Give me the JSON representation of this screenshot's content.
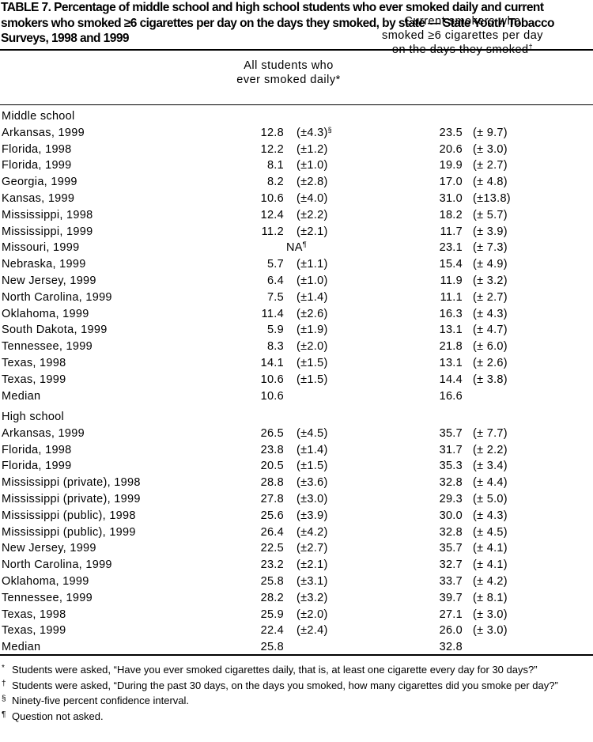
{
  "header": {
    "title": "TABLE 7. Percentage of middle school and high school students who ever smoked daily and current smokers who smoked ≥6 cigarettes per day on the days they smoked, by state — State Youth Tobacco Surveys, 1998 and 1999"
  },
  "table": {
    "columns": [
      {
        "lines": [
          "All students who",
          "ever smoked daily*"
        ]
      },
      {
        "lines": [
          "Current smokers who",
          "smoked ≥6 cigarettes per day",
          "on the days they smoked"
        ],
        "mark": "†"
      }
    ],
    "sections": [
      {
        "title": "Middle school",
        "rows": [
          {
            "label": "Arkansas, 1999",
            "v1": "12.8",
            "ci1": "(±4.3)",
            "note1": "§",
            "v2": "23.5",
            "ci2": "(± 9.7)"
          },
          {
            "label": "Florida, 1998",
            "v1": "12.2",
            "ci1": "(±1.2)",
            "v2": "20.6",
            "ci2": "(± 3.0)"
          },
          {
            "label": "Florida, 1999",
            "v1": "8.1",
            "ci1": "(±1.0)",
            "v2": "19.9",
            "ci2": "(± 2.7)"
          },
          {
            "label": "Georgia, 1999",
            "v1": "8.2",
            "ci1": "(±2.8)",
            "v2": "17.0",
            "ci2": "(± 4.8)"
          },
          {
            "label": "Kansas, 1999",
            "v1": "10.6",
            "ci1": "(±4.0)",
            "v2": "31.0",
            "ci2": "(±13.8)"
          },
          {
            "label": "Mississippi, 1998",
            "v1": "12.4",
            "ci1": "(±2.2)",
            "v2": "18.2",
            "ci2": "(± 5.7)"
          },
          {
            "label": "Mississippi, 1999",
            "v1": "11.2",
            "ci1": "(±2.1)",
            "v2": "11.7",
            "ci2": "(± 3.9)"
          },
          {
            "label": "Missouri, 1999",
            "na": "NA",
            "note1": "¶",
            "v2": "23.1",
            "ci2": "(± 7.3)"
          },
          {
            "label": "Nebraska, 1999",
            "v1": "5.7",
            "ci1": "(±1.1)",
            "v2": "15.4",
            "ci2": "(± 4.9)"
          },
          {
            "label": "New Jersey, 1999",
            "v1": "6.4",
            "ci1": "(±1.0)",
            "v2": "11.9",
            "ci2": "(± 3.2)"
          },
          {
            "label": "North Carolina, 1999",
            "v1": "7.5",
            "ci1": "(±1.4)",
            "v2": "11.1",
            "ci2": "(± 2.7)"
          },
          {
            "label": "Oklahoma, 1999",
            "v1": "11.4",
            "ci1": "(±2.6)",
            "v2": "16.3",
            "ci2": "(± 4.3)"
          },
          {
            "label": "South Dakota, 1999",
            "v1": "5.9",
            "ci1": "(±1.9)",
            "v2": "13.1",
            "ci2": "(± 4.7)"
          },
          {
            "label": "Tennessee, 1999",
            "v1": "8.3",
            "ci1": "(±2.0)",
            "v2": "21.8",
            "ci2": "(± 6.0)"
          },
          {
            "label": "Texas, 1998",
            "v1": "14.1",
            "ci1": "(±1.5)",
            "v2": "13.1",
            "ci2": "(± 2.6)"
          },
          {
            "label": "Texas, 1999",
            "v1": "10.6",
            "ci1": "(±1.5)",
            "v2": "14.4",
            "ci2": "(± 3.8)"
          },
          {
            "label": "Median",
            "v1": "10.6",
            "v2": "16.6"
          }
        ]
      },
      {
        "title": "High school",
        "rows": [
          {
            "label": "Arkansas, 1999",
            "v1": "26.5",
            "ci1": "(±4.5)",
            "v2": "35.7",
            "ci2": "(± 7.7)"
          },
          {
            "label": "Florida, 1998",
            "v1": "23.8",
            "ci1": "(±1.4)",
            "v2": "31.7",
            "ci2": "(± 2.2)"
          },
          {
            "label": "Florida, 1999",
            "v1": "20.5",
            "ci1": "(±1.5)",
            "v2": "35.3",
            "ci2": "(± 3.4)"
          },
          {
            "label": "Mississippi (private), 1998",
            "v1": "28.8",
            "ci1": "(±3.6)",
            "v2": "32.8",
            "ci2": "(± 4.4)"
          },
          {
            "label": "Mississippi (private), 1999",
            "v1": "27.8",
            "ci1": "(±3.0)",
            "v2": "29.3",
            "ci2": "(± 5.0)"
          },
          {
            "label": "Mississippi (public), 1998",
            "v1": "25.6",
            "ci1": "(±3.9)",
            "v2": "30.0",
            "ci2": "(± 4.3)"
          },
          {
            "label": "Mississippi (public), 1999",
            "v1": "26.4",
            "ci1": "(±4.2)",
            "v2": "32.8",
            "ci2": "(± 4.5)"
          },
          {
            "label": "New Jersey, 1999",
            "v1": "22.5",
            "ci1": "(±2.7)",
            "v2": "35.7",
            "ci2": "(± 4.1)"
          },
          {
            "label": "North Carolina, 1999",
            "v1": "23.2",
            "ci1": "(±2.1)",
            "v2": "32.7",
            "ci2": "(± 4.1)"
          },
          {
            "label": "Oklahoma, 1999",
            "v1": "25.8",
            "ci1": "(±3.1)",
            "v2": "33.7",
            "ci2": "(± 4.2)"
          },
          {
            "label": "Tennessee, 1999",
            "v1": "28.2",
            "ci1": "(±3.2)",
            "v2": "39.7",
            "ci2": "(± 8.1)"
          },
          {
            "label": "Texas, 1998",
            "v1": "25.9",
            "ci1": "(±2.0)",
            "v2": "27.1",
            "ci2": "(± 3.0)"
          },
          {
            "label": "Texas, 1999",
            "v1": "22.4",
            "ci1": "(±2.4)",
            "v2": "26.0",
            "ci2": "(± 3.0)"
          },
          {
            "label": "Median",
            "v1": "25.8",
            "v2": "32.8"
          }
        ]
      }
    ]
  },
  "footnotes": [
    {
      "mark": "*",
      "text": "Students were asked, “Have you ever smoked cigarettes daily, that is, at least one cigarette every day for 30 days?”"
    },
    {
      "mark": "†",
      "text": "Students were asked, “During the past 30 days, on the days you smoked, how many cigarettes did you smoke per day?”"
    },
    {
      "mark": "§",
      "text": "Ninety-five percent confidence interval."
    },
    {
      "mark": "¶",
      "text": "Question not asked."
    }
  ]
}
